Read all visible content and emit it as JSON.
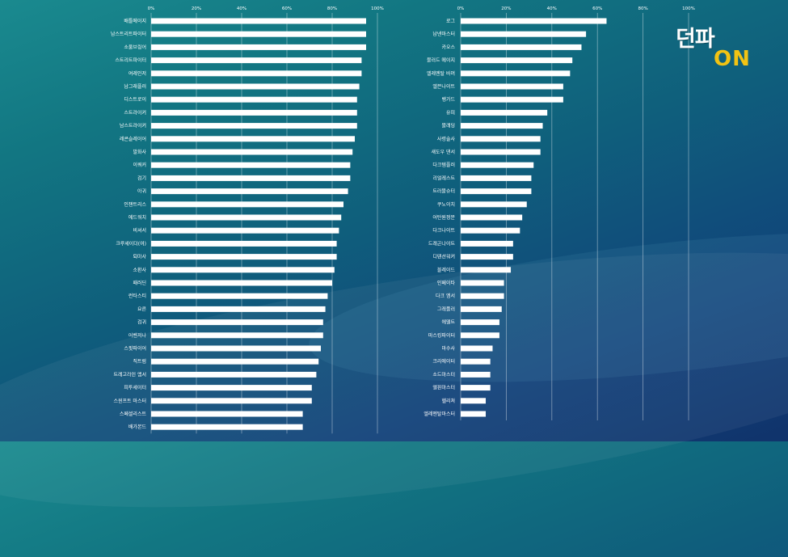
{
  "brand": {
    "logo_text": "던파",
    "logo_on": "ON",
    "accent_color": "#f2c313"
  },
  "chart_data": [
    {
      "type": "bar",
      "orientation": "horizontal",
      "tick_labels": [
        "0%",
        "20%",
        "40%",
        "60%",
        "80%",
        "100%"
      ],
      "xlim": [
        0,
        100
      ],
      "grid": true,
      "categories": [
        "배틀메이지",
        "남스트리트파이터",
        "소울브링어",
        "스트리트파이터",
        "여레인저",
        "남그래플러",
        "디스트로이",
        "스트라이커",
        "남스트라이커",
        "레콘슬레이어",
        "발화사",
        "이쿼커",
        "검기",
        "아귀",
        "인챈트리스",
        "에드워치",
        "비셔서",
        "크루세이더(여)",
        "퇴마사",
        "소환사",
        "패러딘",
        "런타스티",
        "요른",
        "검귀",
        "어벤저나",
        "스핏파이어",
        "직트럼",
        "트레고라인 엠서",
        "피투세이터",
        "스윈프트 마스터",
        "스페셜리스트",
        "배가본드"
      ],
      "values": [
        95,
        95,
        95,
        93,
        93,
        92,
        91,
        91,
        91,
        90,
        89,
        88,
        88,
        87,
        85,
        84,
        83,
        82,
        82,
        81,
        80,
        78,
        77,
        76,
        76,
        75,
        74,
        73,
        71,
        71,
        67,
        67
      ],
      "bar_color": "#ffffff"
    },
    {
      "type": "bar",
      "orientation": "horizontal",
      "tick_labels": [
        "0%",
        "20%",
        "40%",
        "60%",
        "80%",
        "100%"
      ],
      "xlim": [
        0,
        100
      ],
      "grid": true,
      "categories": [
        "로그",
        "남넨마스터",
        "카오스",
        "블러드 메이지",
        "엘레멘탈 바머",
        "엘븐나이트",
        "뱅가드",
        "유피",
        "블래딩",
        "사령술사",
        "섀도우 댄서",
        "다크템플러",
        "리얼레스트",
        "트러블슈터",
        "쿠노이치",
        "어탄원정문",
        "다크나이트",
        "드래곤나이트",
        "디텐션워커",
        "블레이드",
        "인페이타",
        "다크 엠서",
        "그래플러",
        "에델트",
        "마스킹파이터",
        "마수사",
        "크리에이터",
        "소드마스터",
        "엘핀마스터",
        "헬리쳐",
        "엘레멘탈마스터"
      ],
      "values": [
        64,
        55,
        53,
        49,
        48,
        45,
        45,
        38,
        36,
        35,
        35,
        32,
        31,
        31,
        29,
        27,
        26,
        23,
        23,
        22,
        19,
        19,
        18,
        17,
        17,
        14,
        13,
        13,
        13,
        11,
        11
      ],
      "bar_color": "#ffffff"
    }
  ]
}
